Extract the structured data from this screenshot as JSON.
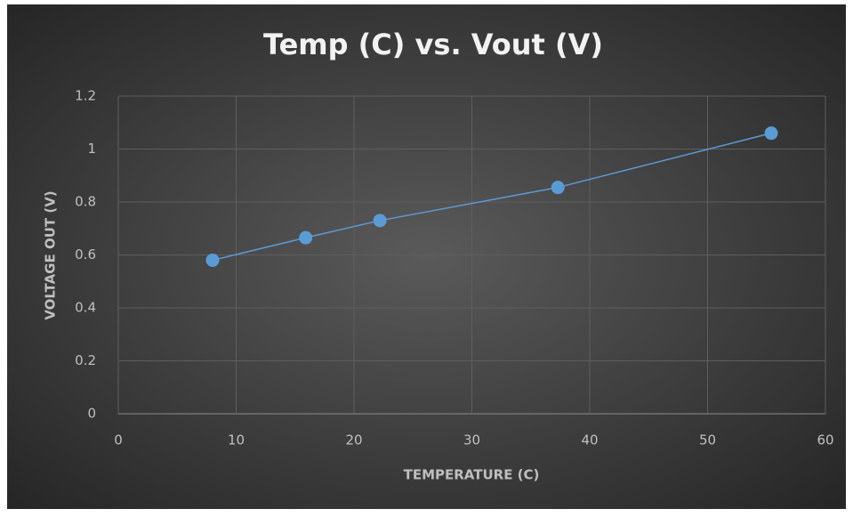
{
  "chart_data": {
    "type": "scatter",
    "title": "Temp (C) vs. Vout (V)",
    "x_label": "TEMPERATURE (C)",
    "y_label": "VOLTAGE OUT (V)",
    "x": [
      8,
      15.9,
      22.2,
      37.3,
      55.4
    ],
    "series": [
      {
        "name": "Vout",
        "color": "#5b9bd5",
        "values": [
          0.58,
          0.665,
          0.73,
          0.855,
          1.06
        ]
      }
    ],
    "connect_points": true,
    "xlim": [
      0,
      60
    ],
    "xticks": [
      0,
      10,
      20,
      30,
      40,
      50,
      60
    ],
    "ylim": [
      0,
      1.2
    ],
    "yticks": [
      0,
      0.2,
      0.4,
      0.6,
      0.8,
      1,
      1.2
    ],
    "grid": true
  }
}
